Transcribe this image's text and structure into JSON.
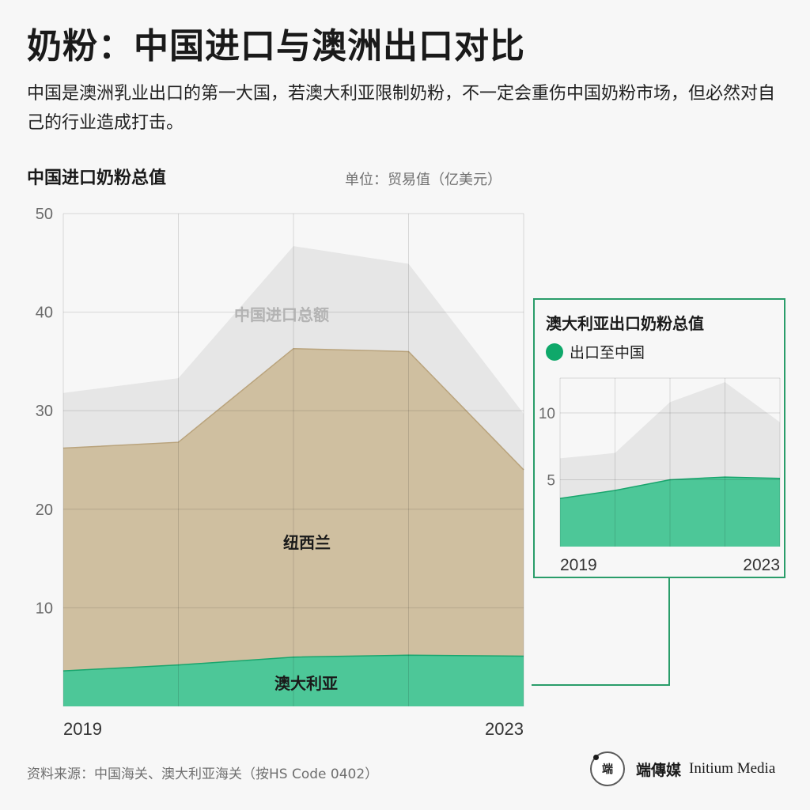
{
  "header": {
    "title": "奶粉：中国进口与澳洲出口对比",
    "subtitle": "中国是澳洲乳业出口的第一大国，若澳大利亚限制奶粉，不一定会重伤中国奶粉市场，但必然对自己的行业造成打击。"
  },
  "chart_data": [
    {
      "type": "area",
      "title": "中国进口奶粉总值",
      "unit_label": "单位：贸易值（亿美元）",
      "x": [
        2019,
        2020,
        2021,
        2022,
        2023
      ],
      "x_tick_labels": [
        "2019",
        "2023"
      ],
      "ylim": [
        0,
        50
      ],
      "y_ticks": [
        10,
        20,
        30,
        40,
        50
      ],
      "grid": true,
      "stacked": true,
      "series": [
        {
          "name": "澳大利亚",
          "values": [
            3.6,
            4.2,
            5.0,
            5.2,
            5.1
          ],
          "color": "#4dc798"
        },
        {
          "name": "纽西兰",
          "values": [
            26.2,
            26.8,
            36.3,
            36.0,
            24.0
          ],
          "color": "#cfbfa0"
        },
        {
          "name": "中国进口总额",
          "values": [
            31.8,
            33.3,
            46.7,
            44.9,
            29.7
          ],
          "color": "#e6e6e6"
        }
      ],
      "series_labels": {
        "total": "中国进口总额",
        "nz": "纽西兰",
        "au": "澳大利亚"
      }
    },
    {
      "type": "area",
      "title": "澳大利亚出口奶粉总值",
      "x": [
        2019,
        2020,
        2021,
        2022,
        2023
      ],
      "x_tick_labels": [
        "2019",
        "2023"
      ],
      "ylim": [
        0,
        12.6
      ],
      "y_ticks": [
        5,
        10
      ],
      "grid": true,
      "legend": "top-left",
      "series": [
        {
          "name": "出口至中国",
          "values": [
            3.6,
            4.2,
            5.0,
            5.2,
            5.1
          ],
          "color": "#4dc798"
        },
        {
          "name": "",
          "values": [
            6.6,
            7.0,
            10.8,
            12.3,
            9.3
          ],
          "color": "#e6e6e6"
        }
      ]
    }
  ],
  "inset": {
    "title": "澳大利亚出口奶粉总值",
    "legend_label": "出口至中国",
    "legend_color": "#0fa86a"
  },
  "footer": {
    "source": "资料来源：中国海关、澳大利亚海关（按HS Code 0402）",
    "brand_cn": "端傳媒",
    "brand_en": "Initium Media",
    "brand_logo_text": "端"
  },
  "colors": {
    "accent_green": "#2a9d6a",
    "australia": "#4dc798",
    "new_zealand": "#cfbfa0",
    "total": "#e6e6e6"
  }
}
